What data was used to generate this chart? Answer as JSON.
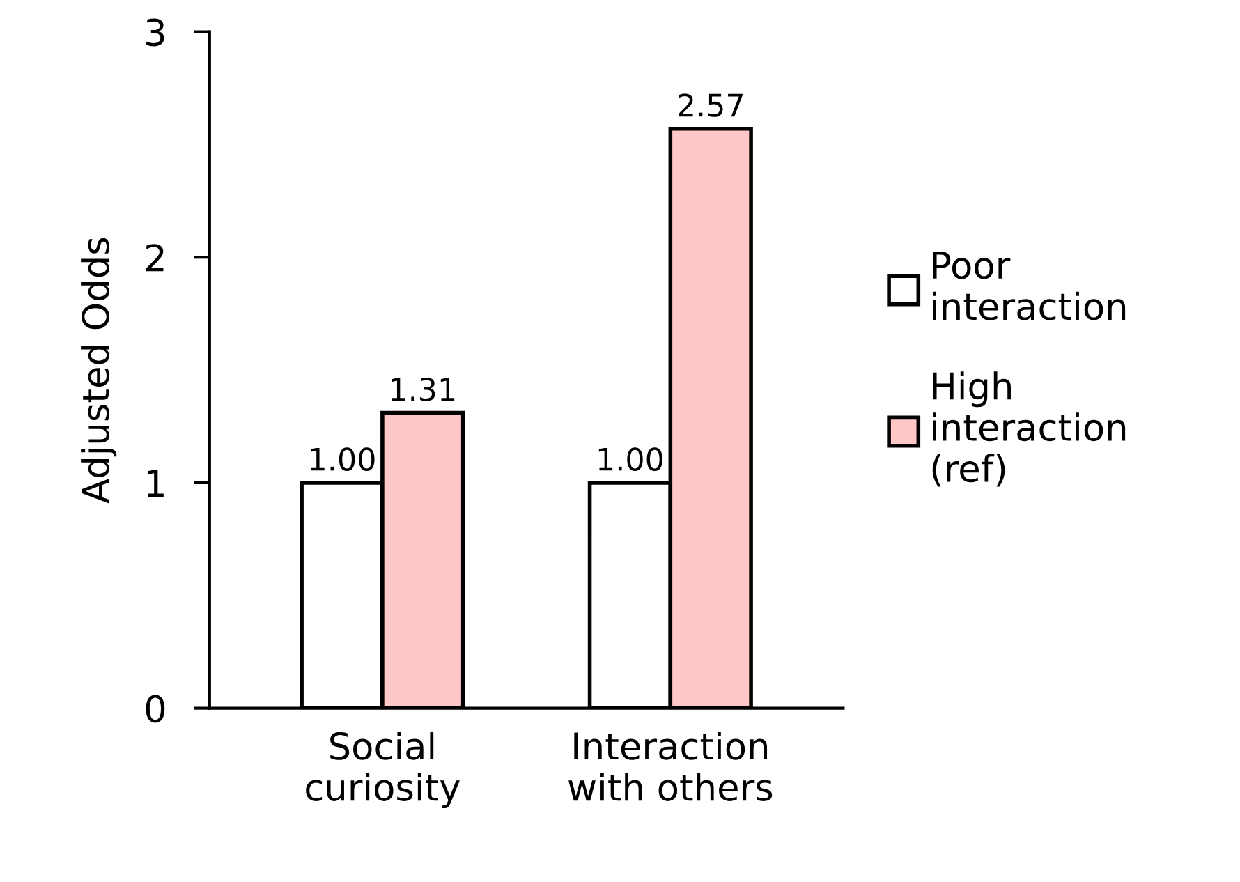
{
  "chart_data": {
    "type": "bar",
    "ylabel": "Adjusted Odds",
    "categories": [
      "Social\ncuriosity",
      "Interaction\nwith others"
    ],
    "series": [
      {
        "name": "Poor\ninteraction",
        "color": "#ffffff",
        "values": [
          1.0,
          1.0
        ],
        "value_labels": [
          "1.00",
          "1.00"
        ]
      },
      {
        "name": "High\ninteraction\n(ref)",
        "color": "#ffc7c7",
        "values": [
          1.31,
          2.57
        ],
        "value_labels": [
          "1.31",
          "2.57"
        ]
      }
    ],
    "ylim": [
      0,
      3
    ],
    "yticks": [
      0,
      1,
      2,
      3
    ],
    "grid": false,
    "legend": "right"
  }
}
